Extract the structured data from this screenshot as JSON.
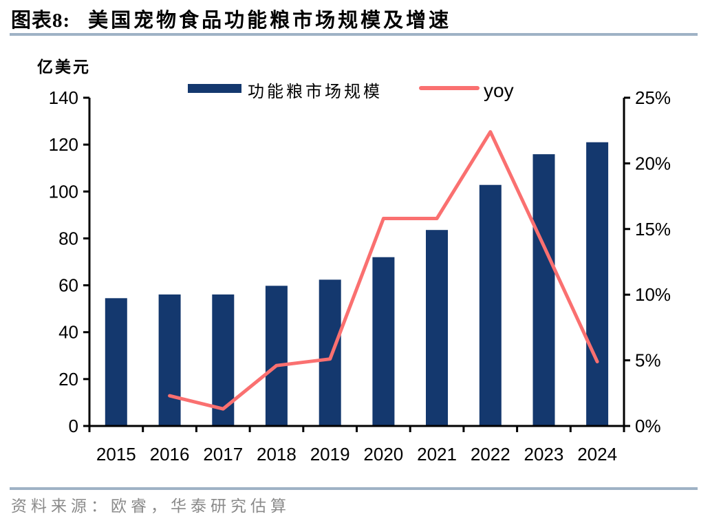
{
  "page": {
    "header": {
      "chart_label": "图表8:",
      "title": "美国宠物食品功能粮市场规模及增速"
    },
    "footer": {
      "source": "资料来源：欧睿，华泰研究估算"
    },
    "colors": {
      "bar": "#14386e",
      "line": "#fa7070",
      "rule": "#9fb2c5",
      "source_text": "#8a8a8a"
    }
  },
  "chart_data": {
    "type": "bar",
    "subtype": "bar-line combo, dual y-axis",
    "title": "美国宠物食品功能粮市场规模及增速",
    "categories": [
      "2015",
      "2016",
      "2017",
      "2018",
      "2019",
      "2020",
      "2021",
      "2022",
      "2023",
      "2024"
    ],
    "series": [
      {
        "name": "功能粮市场规模",
        "type": "bar",
        "axis": "left",
        "unit": "亿美元",
        "color": "#14386e",
        "values": [
          54.5,
          56.1,
          56.1,
          59.8,
          62.4,
          72.0,
          83.6,
          102.8,
          115.9,
          121.0
        ]
      },
      {
        "name": "yoy",
        "type": "line",
        "axis": "right",
        "unit": "%",
        "color": "#fa7070",
        "values": [
          null,
          2.3,
          1.3,
          4.6,
          5.1,
          15.8,
          15.8,
          22.4,
          13.7,
          4.9
        ]
      }
    ],
    "left_axis": {
      "label": "亿美元",
      "min": 0,
      "max": 140,
      "step": 20
    },
    "right_axis": {
      "min": 0,
      "max": 25,
      "step": 5,
      "suffix": "%"
    },
    "legend_position": "top",
    "grid": false
  }
}
